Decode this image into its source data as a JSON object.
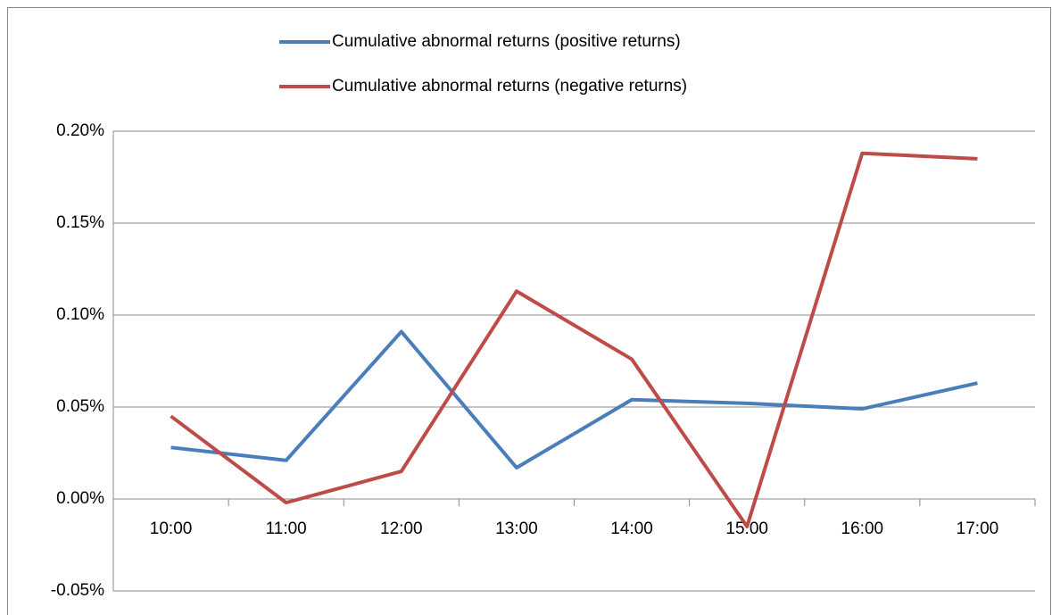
{
  "chart_data": {
    "type": "line",
    "categories": [
      "10:00",
      "11:00",
      "12:00",
      "13:00",
      "14:00",
      "15:00",
      "16:00",
      "17:00"
    ],
    "series": [
      {
        "name": "Cumulative abnormal returns (positive returns)",
        "color": "#4a7ebb",
        "values": [
          0.028,
          0.021,
          0.091,
          0.017,
          0.054,
          0.052,
          0.049,
          0.063
        ]
      },
      {
        "name": "Cumulative abnormal returns (negative returns)",
        "color": "#be4b48",
        "values": [
          0.045,
          -0.002,
          0.015,
          0.113,
          0.076,
          -0.015,
          0.188,
          0.185
        ]
      }
    ],
    "ylim": [
      -0.05,
      0.2
    ],
    "yticks": [
      {
        "value": -0.05,
        "label": "-0.05%"
      },
      {
        "value": 0,
        "label": "0.00%"
      },
      {
        "value": 0.05,
        "label": "0.05%"
      },
      {
        "value": 0.1,
        "label": "0.10%"
      },
      {
        "value": 0.15,
        "label": "0.15%"
      },
      {
        "value": 0.2,
        "label": "0.20%"
      }
    ],
    "grid": true,
    "legend": "top"
  }
}
